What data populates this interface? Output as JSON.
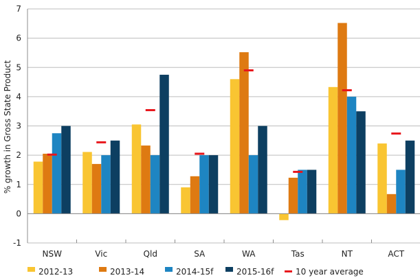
{
  "chart_data": {
    "type": "bar",
    "ylabel": "% growth in Gross State Product",
    "ylim": [
      -1,
      7
    ],
    "yticks": [
      -1,
      0,
      1,
      2,
      3,
      4,
      5,
      6,
      7
    ],
    "grid": true,
    "legend_position": "bottom",
    "categories": [
      "NSW",
      "Vic",
      "Qld",
      "SA",
      "WA",
      "Tas",
      "NT",
      "ACT"
    ],
    "series": [
      {
        "name": "2012-13",
        "color": "#F9C532",
        "values": [
          1.78,
          2.11,
          3.05,
          0.9,
          4.6,
          -0.22,
          4.33,
          2.4
        ]
      },
      {
        "name": "2013-14",
        "color": "#DE7A12",
        "values": [
          2.05,
          1.7,
          2.33,
          1.28,
          5.52,
          1.23,
          6.52,
          0.67
        ]
      },
      {
        "name": "2014-15f",
        "color": "#1E85C2",
        "values": [
          2.75,
          2.0,
          2.0,
          2.0,
          2.0,
          1.5,
          4.0,
          1.5
        ]
      },
      {
        "name": "2015-16f",
        "color": "#0D3F61",
        "values": [
          3.0,
          2.5,
          4.75,
          2.0,
          3.0,
          1.5,
          3.5,
          2.5
        ]
      }
    ],
    "markers": {
      "name": "10 year average",
      "color": "#E8171C",
      "values": [
        2.02,
        2.44,
        3.54,
        2.05,
        4.9,
        1.43,
        4.22,
        2.74
      ]
    }
  }
}
